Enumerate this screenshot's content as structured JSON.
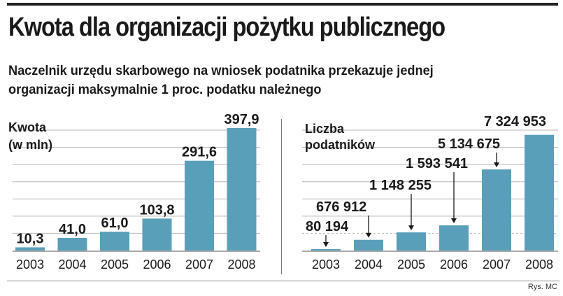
{
  "header": {
    "title": "Kwota dla organizacji pożytku publicznego",
    "subtitle_line1": "Naczelnik urzędu skarbowego na wniosek podatnika przekazuje jednej",
    "subtitle_line2": "organizacji maksymalnie 1 proc. podatku należnego"
  },
  "footer": {
    "credit": "Rys. MC"
  },
  "colors": {
    "bar": "#5a9fba",
    "grid": "#b8b8b8",
    "text": "#1a1a1a"
  },
  "chart_data": [
    {
      "type": "bar",
      "ylabel_line1": "Kwota",
      "ylabel_line2": "(w mln)",
      "categories": [
        "2003",
        "2004",
        "2005",
        "2006",
        "2007",
        "2008"
      ],
      "values": [
        10.3,
        41.0,
        61.0,
        103.8,
        291.6,
        397.9
      ],
      "value_labels": [
        "10,3",
        "41,0",
        "61,0",
        "103,8",
        "291,6",
        "397,9"
      ],
      "ylim": [
        0,
        400
      ],
      "grid": true
    },
    {
      "type": "bar",
      "ylabel_line1": "Liczba",
      "ylabel_line2": "podatników",
      "categories": [
        "2003",
        "2004",
        "2005",
        "2006",
        "2007",
        "2008"
      ],
      "values": [
        80194,
        676912,
        1148255,
        1593541,
        5134675,
        7324953
      ],
      "value_labels": [
        "80 194",
        "676 912",
        "1 148 255",
        "1 593 541",
        "5 134 675",
        "7 324 953"
      ],
      "ylim": [
        0,
        7800000
      ],
      "grid": true
    }
  ]
}
